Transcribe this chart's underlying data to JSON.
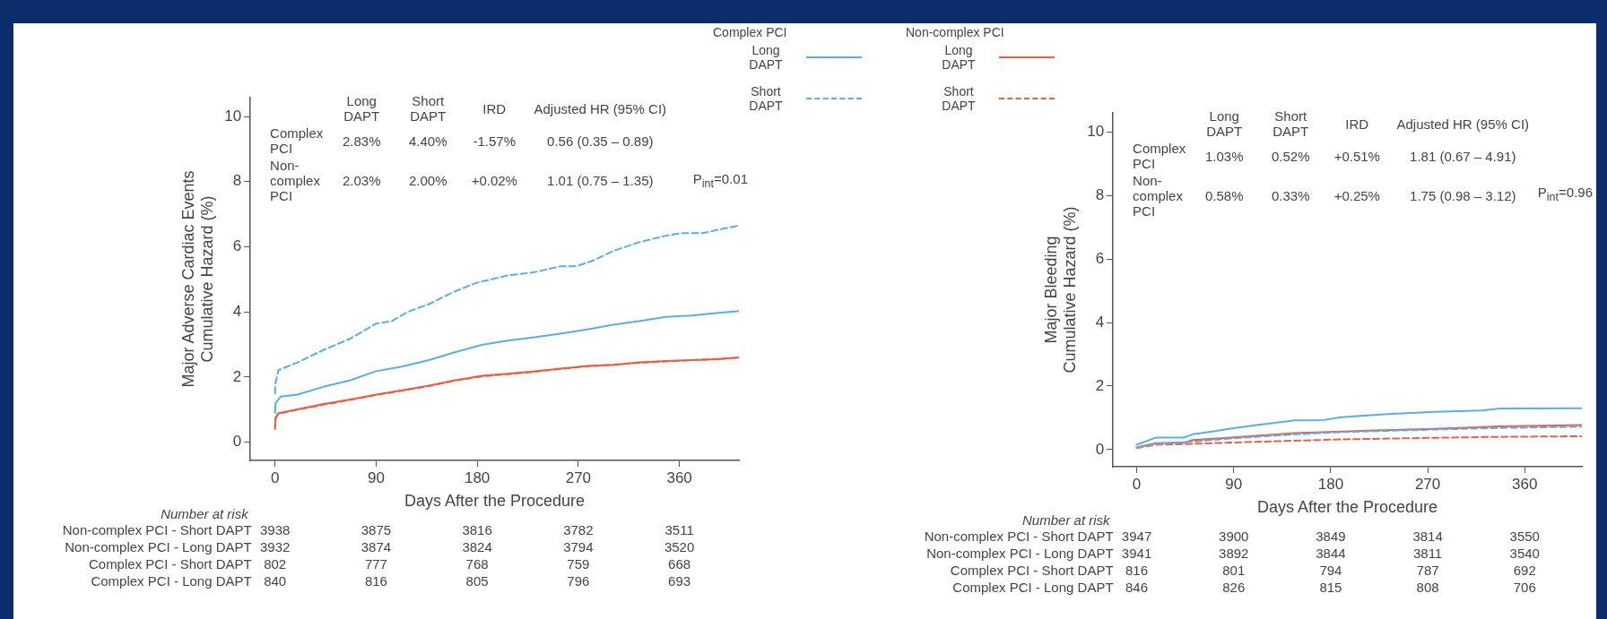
{
  "chart_data": [
    {
      "type": "line",
      "xlabel": "Days After the Procedure",
      "ylabel": "Major Adverse Cardiac Events\nCumulative Hazard (%)",
      "xlim": [
        -22,
        413
      ],
      "ylim": [
        -0.56,
        10.58
      ],
      "xticks": [
        0,
        90,
        180,
        270,
        360
      ],
      "yticks": [
        0,
        2,
        4,
        6,
        8,
        10
      ],
      "legend": "top",
      "series": [
        {
          "name": "Long DAPT",
          "color": "#5aaee0",
          "line_style": "solid",
          "x": [
            0,
            0.5,
            5,
            20,
            43,
            67,
            90,
            113,
            137,
            160,
            184,
            207,
            231,
            254,
            278,
            301,
            324,
            348,
            371,
            395,
            413
          ],
          "values": [
            0.9,
            1.2,
            1.4,
            1.46,
            1.7,
            1.9,
            2.18,
            2.32,
            2.52,
            2.76,
            2.99,
            3.12,
            3.22,
            3.33,
            3.46,
            3.61,
            3.72,
            3.85,
            3.89,
            3.97,
            4.03
          ]
        },
        {
          "name": "Short DAPT",
          "color": "#5aaee0",
          "line_style": "dashed",
          "x": [
            0,
            0.5,
            3,
            20,
            43,
            67,
            90,
            104,
            118,
            137,
            160,
            179,
            207,
            231,
            254,
            268,
            282,
            301,
            324,
            348,
            362,
            381,
            395,
            413
          ],
          "values": [
            1.5,
            1.82,
            2.21,
            2.45,
            2.83,
            3.18,
            3.64,
            3.72,
            4.0,
            4.24,
            4.63,
            4.89,
            5.12,
            5.22,
            5.4,
            5.4,
            5.56,
            5.87,
            6.14,
            6.34,
            6.42,
            6.42,
            6.53,
            6.65
          ]
        },
        {
          "name": "Long DAPT",
          "color": "#e8604a",
          "line_style": "solid",
          "x": [
            0,
            0.5,
            3,
            20,
            43,
            67,
            90,
            113,
            137,
            160,
            184,
            207,
            231,
            254,
            278,
            301,
            324,
            348,
            371,
            395,
            413
          ],
          "values": [
            0.5,
            0.75,
            0.89,
            1.01,
            1.17,
            1.31,
            1.46,
            1.59,
            1.74,
            1.9,
            2.04,
            2.1,
            2.18,
            2.26,
            2.34,
            2.37,
            2.45,
            2.49,
            2.52,
            2.55,
            2.6
          ]
        },
        {
          "name": "Short DAPT",
          "color": "#e8604a",
          "line_style": "dashed",
          "x": [
            0,
            0.5,
            3,
            20,
            43,
            67,
            90,
            113,
            137,
            160,
            184,
            207,
            231,
            254,
            278,
            301,
            324,
            348,
            371,
            395,
            413
          ],
          "values": [
            0.4,
            0.72,
            0.87,
            1.0,
            1.15,
            1.3,
            1.45,
            1.58,
            1.72,
            1.89,
            2.02,
            2.09,
            2.16,
            2.25,
            2.33,
            2.38,
            2.44,
            2.48,
            2.52,
            2.56,
            2.6
          ]
        }
      ],
      "annotations": [
        "Long DAPT",
        "Short DAPT",
        "IRD",
        "Adjusted HR (95% CI)",
        "Complex PCI",
        "2.83%",
        "4.40%",
        "-1.57%",
        "0.56 (0.35 – 0.89)",
        "Non-complex PCI",
        "2.03%",
        "2.00%",
        "+0.02%",
        "1.01 (0.75 – 1.35)",
        "P$_{int}$=0.01",
        "Number at risk",
        "Non-complex PCI - Short DAPT",
        "3938",
        "3875",
        "3816",
        "3782",
        "3511",
        "Non-complex PCI - Long DAPT",
        "3932",
        "3874",
        "3824",
        "3794",
        "3520",
        "Complex PCI - Short DAPT",
        "802",
        "777",
        "768",
        "759",
        "668",
        "Complex PCI - Long DAPT",
        "840",
        "816",
        "805",
        "796",
        "693",
        "Complex PCI",
        "Non-complex PCI"
      ]
    },
    {
      "type": "line",
      "xlabel": "Days After the Procedure",
      "ylabel": "Major Bleeding\nCumulative Hazard (%)",
      "xlim": [
        -22,
        413
      ],
      "ylim": [
        -0.54,
        10.6
      ],
      "xticks": [
        0,
        90,
        180,
        270,
        360
      ],
      "yticks": [
        0,
        2,
        4,
        6,
        8,
        10
      ],
      "series": [
        {
          "color": "#5aaee0",
          "line_style": "solid",
          "x": [
            0,
            18,
            44,
            52,
            70,
            87,
            113,
            147,
            173,
            190,
            233,
            276,
            320,
            337,
            413
          ],
          "values": [
            0.15,
            0.38,
            0.38,
            0.48,
            0.57,
            0.66,
            0.78,
            0.92,
            0.93,
            1.02,
            1.12,
            1.19,
            1.23,
            1.29,
            1.3
          ]
        },
        {
          "color": "#5aaee0",
          "line_style": "dashed",
          "x": [
            0,
            18,
            52,
            87,
            147,
            190,
            276,
            337,
            413
          ],
          "values": [
            0.05,
            0.17,
            0.25,
            0.35,
            0.48,
            0.55,
            0.63,
            0.68,
            0.72
          ]
        },
        {
          "color": "#e8604a",
          "line_style": "solid",
          "x": [
            0,
            18,
            44,
            52,
            87,
            147,
            190,
            276,
            337,
            413
          ],
          "values": [
            0.07,
            0.2,
            0.22,
            0.3,
            0.38,
            0.52,
            0.57,
            0.65,
            0.73,
            0.77
          ]
        },
        {
          "color": "#e8604a",
          "line_style": "dashed",
          "x": [
            0,
            18,
            52,
            87,
            147,
            190,
            276,
            337,
            413
          ],
          "values": [
            0.05,
            0.15,
            0.18,
            0.22,
            0.28,
            0.32,
            0.37,
            0.4,
            0.42
          ]
        }
      ],
      "annotations": [
        "Long DAPT",
        "Short DAPT",
        "IRD",
        "Adjusted HR (95% CI)",
        "Complex PCI",
        "1.03%",
        "0.52%",
        "+0.51%",
        "1.81 (0.67 – 4.91)",
        "Non-complex PCI",
        "0.58%",
        "0.33%",
        "+0.25%",
        "1.75 (0.98 – 3.12)",
        "P$_{int}$=0.96",
        "Number at risk",
        "Non-complex PCI - Short DAPT",
        "3947",
        "3900",
        "3849",
        "3814",
        "3550",
        "Non-complex PCI - Long DAPT",
        "3941",
        "3892",
        "3844",
        "3811",
        "3540",
        "Complex PCI - Short DAPT",
        "816",
        "801",
        "794",
        "787",
        "692",
        "Complex PCI - Long DAPT",
        "846",
        "826",
        "815",
        "808",
        "706"
      ]
    }
  ]
}
